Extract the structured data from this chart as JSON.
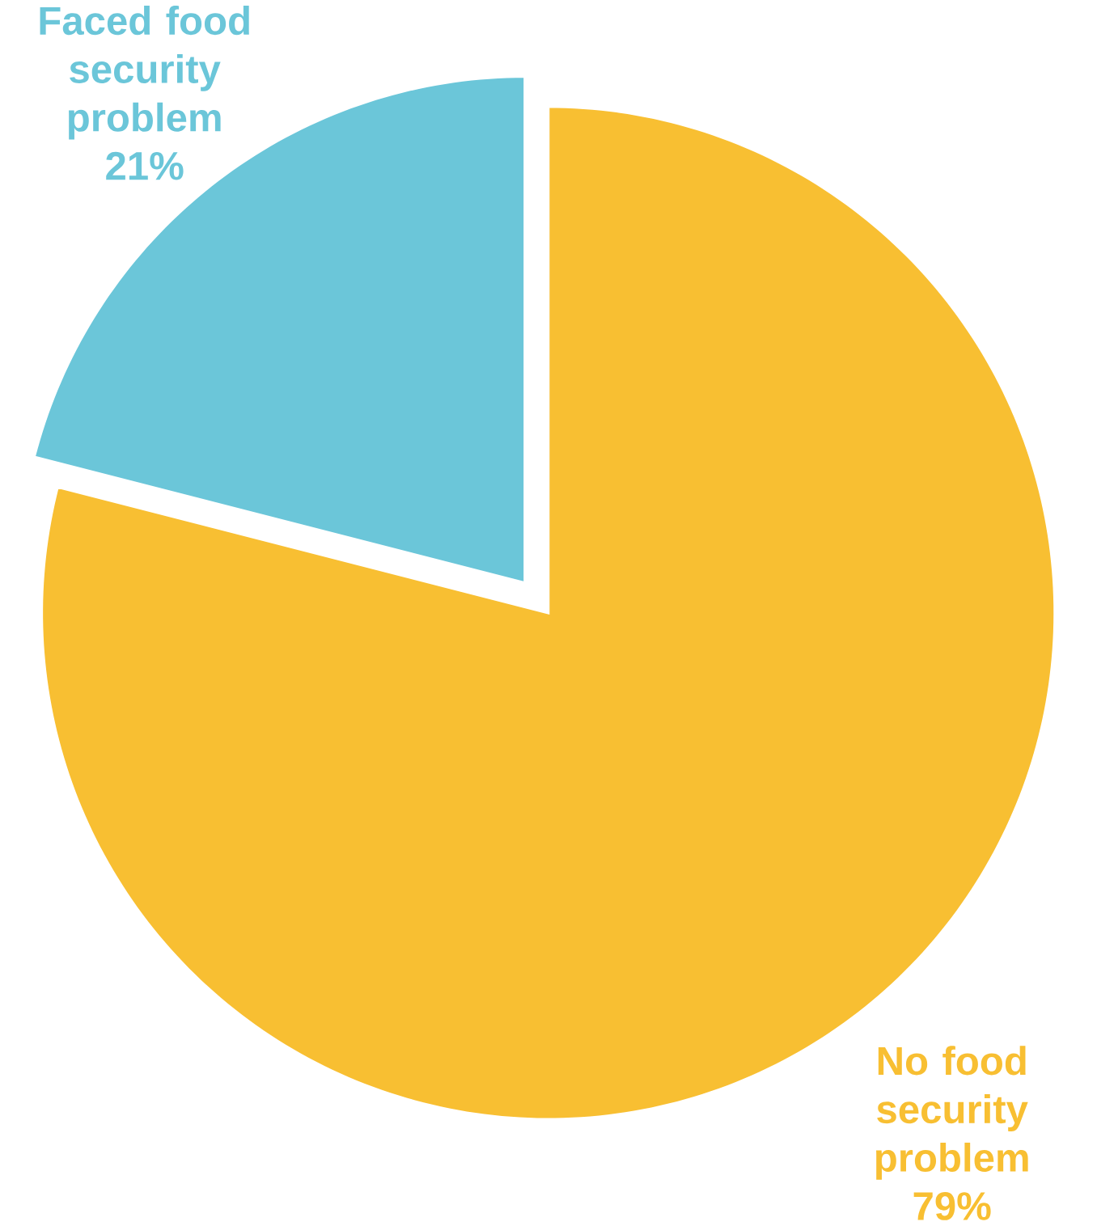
{
  "chart_data": {
    "type": "pie",
    "categories": [
      "Faced food security problem",
      "No food security problem"
    ],
    "values": [
      21,
      79
    ],
    "colors": [
      "#6bc6d9",
      "#f8bf32"
    ],
    "value_labels": [
      "21%",
      "79%"
    ]
  }
}
